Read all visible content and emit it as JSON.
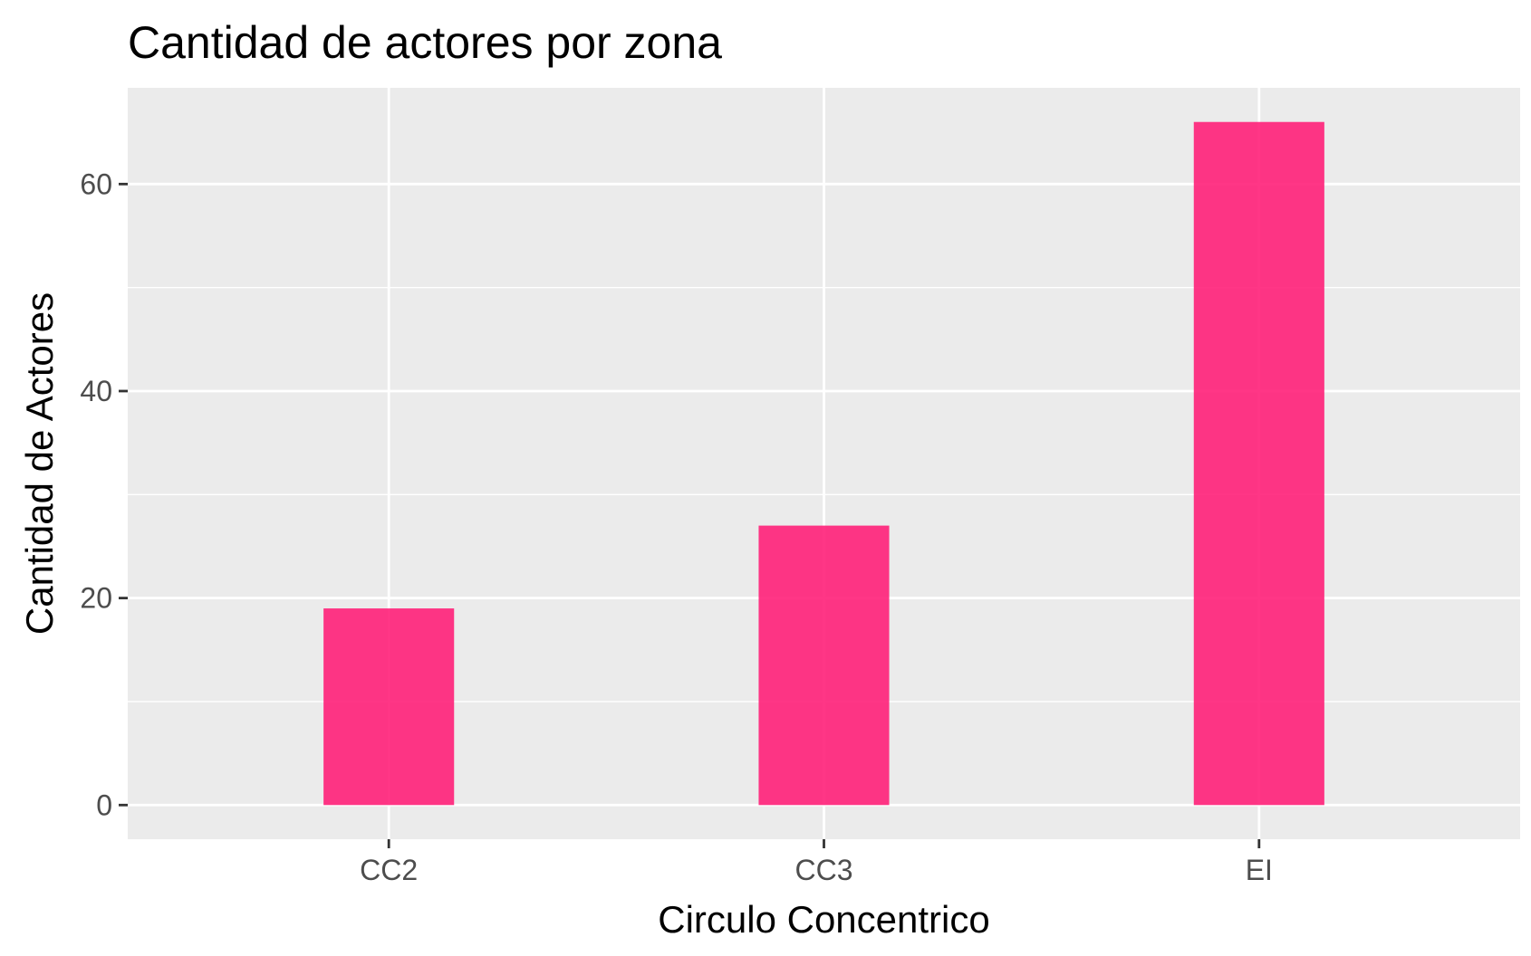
{
  "chart_data": {
    "type": "bar",
    "title": "Cantidad de actores por zona",
    "xlabel": "Circulo Concentrico",
    "ylabel": "Cantidad de Actores",
    "categories": [
      "CC2",
      "CC3",
      "EI"
    ],
    "values": [
      19,
      27,
      66
    ],
    "ylim": [
      -3.3,
      69.3
    ],
    "yticks": [
      0,
      20,
      40,
      60
    ],
    "grid": true,
    "bar_color": "#ff1a75",
    "panel_background": "#ebebeb",
    "gridline_color": "#ffffff",
    "tick_label_color": "#4d4d4d"
  }
}
